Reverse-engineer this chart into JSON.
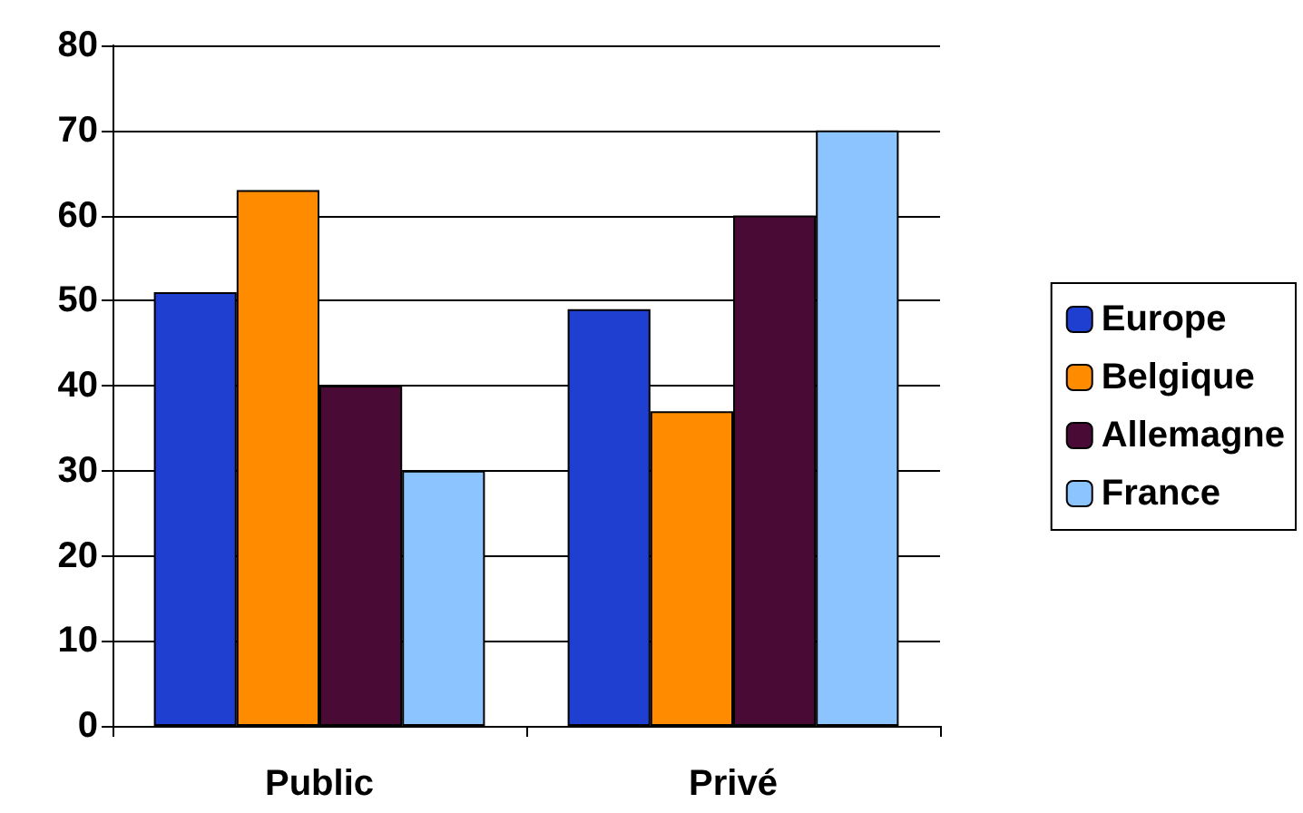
{
  "chart_data": {
    "type": "bar",
    "categories": [
      "Public",
      "Privé"
    ],
    "series": [
      {
        "name": "Europe",
        "color": "#1f3fd0",
        "values": [
          51,
          49
        ]
      },
      {
        "name": "Belgique",
        "color": "#ff8c00",
        "values": [
          63,
          37
        ]
      },
      {
        "name": "Allemagne",
        "color": "#4a0a36",
        "values": [
          40,
          60
        ]
      },
      {
        "name": "France",
        "color": "#8cc4ff",
        "values": [
          30,
          70
        ]
      }
    ],
    "ylim": [
      0,
      80
    ],
    "yticks": [
      0,
      10,
      20,
      30,
      40,
      50,
      60,
      70,
      80
    ],
    "grid": "y",
    "legend": "right"
  }
}
